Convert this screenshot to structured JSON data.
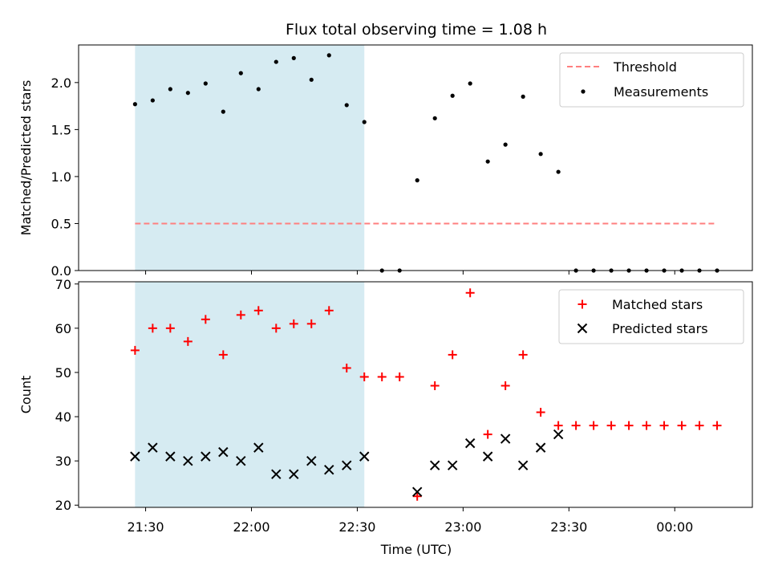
{
  "chart_data": {
    "type": "scatter",
    "title": "Flux total observing time = 1.08 h",
    "xlabel": "Time (UTC)",
    "x_ticks": [
      "21:30",
      "22:00",
      "22:30",
      "23:00",
      "23:30",
      "00:00"
    ],
    "x_tick_minutes": [
      1290,
      1320,
      1350,
      1380,
      1410,
      1440
    ],
    "x_range_minutes": [
      1271,
      1462
    ],
    "highlight_span_minutes": [
      1287,
      1352
    ],
    "highlight_color": "#add8e6",
    "times_minutes": [
      1287,
      1292,
      1297,
      1302,
      1307,
      1312,
      1317,
      1322,
      1327,
      1332,
      1337,
      1342,
      1347,
      1352,
      1357,
      1362,
      1367,
      1372,
      1377,
      1382,
      1387,
      1392,
      1397,
      1402,
      1407,
      1412,
      1417,
      1422,
      1427,
      1432,
      1437,
      1442,
      1447,
      1452
    ],
    "panels": [
      {
        "ylabel": "Matched/Predicted stars",
        "ylim": [
          0,
          2.4
        ],
        "yticks": [
          0.0,
          0.5,
          1.0,
          1.5,
          2.0
        ],
        "ytick_labels": [
          "0.0",
          "0.5",
          "1.0",
          "1.5",
          "2.0"
        ],
        "legend_position": "top-right",
        "threshold": {
          "name": "Threshold",
          "value": 0.5,
          "color": "#ff7f7f",
          "start_minutes": 1287,
          "end_minutes": 1452
        },
        "series": [
          {
            "name": "Measurements",
            "marker": "dot",
            "color": "#000000",
            "values": [
              1.77,
              1.81,
              1.93,
              1.89,
              1.99,
              1.69,
              2.1,
              1.93,
              2.22,
              2.26,
              2.03,
              2.29,
              1.76,
              1.58,
              0.0,
              0.0,
              0.96,
              1.62,
              1.86,
              1.99,
              1.16,
              1.34,
              1.85,
              1.24,
              1.05,
              0.0,
              0.0,
              0.0,
              0.0,
              0.0,
              0.0,
              0.0,
              0.0,
              0.0
            ]
          }
        ]
      },
      {
        "ylabel": "Count",
        "ylim": [
          19.5,
          70.5
        ],
        "yticks": [
          20,
          30,
          40,
          50,
          60,
          70
        ],
        "ytick_labels": [
          "20",
          "30",
          "40",
          "50",
          "60",
          "70"
        ],
        "legend_position": "top-right",
        "series": [
          {
            "name": "Matched stars",
            "marker": "plus",
            "color": "#ff0000",
            "values": [
              55,
              60,
              60,
              57,
              62,
              54,
              63,
              64,
              60,
              61,
              61,
              64,
              51,
              49,
              49,
              49,
              22,
              47,
              54,
              68,
              36,
              47,
              54,
              41,
              38,
              38,
              38,
              38,
              38,
              38,
              38,
              38,
              38,
              38
            ]
          },
          {
            "name": "Predicted stars",
            "marker": "x",
            "color": "#000000",
            "values": [
              31,
              33,
              31,
              30,
              31,
              32,
              30,
              33,
              27,
              27,
              30,
              28,
              29,
              31,
              null,
              null,
              23,
              29,
              29,
              34,
              31,
              35,
              29,
              33,
              36,
              null,
              null,
              null,
              null,
              null,
              null,
              null,
              null,
              null
            ]
          }
        ]
      }
    ]
  }
}
